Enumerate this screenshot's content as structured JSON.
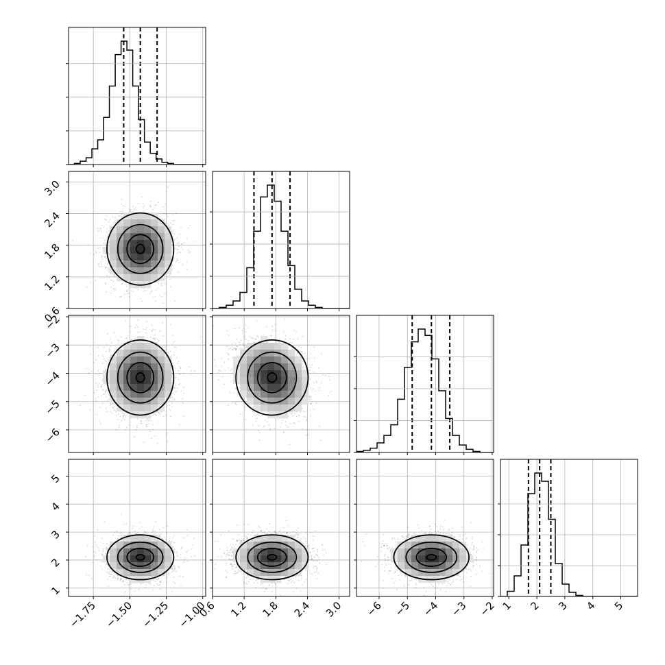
{
  "chart_data": {
    "type": "corner",
    "title": "",
    "grid": true,
    "variables": [
      {
        "range": [
          -1.92,
          -0.98
        ],
        "ticks": [
          -1.75,
          -1.5,
          -1.25,
          -1.0
        ],
        "tick_labels": [
          "−1.75",
          "−1.50",
          "−1.25",
          "−1.00"
        ],
        "quantiles": [
          -1.542,
          -1.428,
          -1.313
        ]
      },
      {
        "range": [
          0.6,
          3.2
        ],
        "ticks": [
          0.6,
          1.2,
          1.8,
          2.4,
          3.0
        ],
        "tick_labels": [
          "0.6",
          "1.2",
          "1.8",
          "2.4",
          "3.0"
        ],
        "quantiles": [
          1.386,
          1.728,
          2.07
        ]
      },
      {
        "range": [
          -6.8,
          -1.95
        ],
        "ticks": [
          -6,
          -5,
          -4,
          -3,
          -2
        ],
        "tick_labels": [
          "−6",
          "−5",
          "−4",
          "−3",
          "−2"
        ],
        "quantiles": [
          -4.83,
          -4.15,
          -3.5
        ]
      },
      {
        "range": [
          0.7,
          5.6
        ],
        "ticks": [
          1,
          2,
          3,
          4,
          5
        ],
        "tick_labels": [
          "1",
          "2",
          "3",
          "4",
          "5"
        ],
        "quantiles": [
          1.7,
          2.1,
          2.5
        ]
      }
    ],
    "histograms": [
      {
        "edges_start": -1.92,
        "bin_width": 0.04,
        "counts": [
          0,
          1,
          3,
          6,
          14,
          22,
          42,
          70,
          98,
          110,
          102,
          70,
          40,
          20,
          10,
          5,
          2,
          1,
          0,
          0,
          0,
          0,
          0,
          0
        ]
      },
      {
        "edges_start": 0.6,
        "bin_width": 0.13,
        "counts": [
          0,
          1,
          3,
          7,
          15,
          38,
          72,
          104,
          115,
          100,
          72,
          40,
          18,
          7,
          3,
          1,
          0,
          0,
          0,
          0
        ]
      },
      {
        "edges_start": -6.8,
        "bin_width": 0.2425,
        "counts": [
          1,
          2,
          4,
          9,
          16,
          26,
          50,
          80,
          104,
          116,
          110,
          88,
          58,
          32,
          16,
          7,
          3,
          1,
          0,
          0
        ]
      },
      {
        "edges_start": 0.7,
        "bin_width": 0.245,
        "counts": [
          0,
          5,
          20,
          50,
          100,
          120,
          112,
          75,
          32,
          12,
          4,
          1,
          0,
          0,
          0,
          0,
          0,
          0,
          0,
          0
        ]
      }
    ],
    "correlations": [
      [
        1,
        0,
        0,
        0
      ],
      [
        0,
        1,
        -0.2,
        0
      ],
      [
        0,
        -0.2,
        1,
        0
      ],
      [
        0,
        0,
        0,
        1
      ]
    ]
  }
}
